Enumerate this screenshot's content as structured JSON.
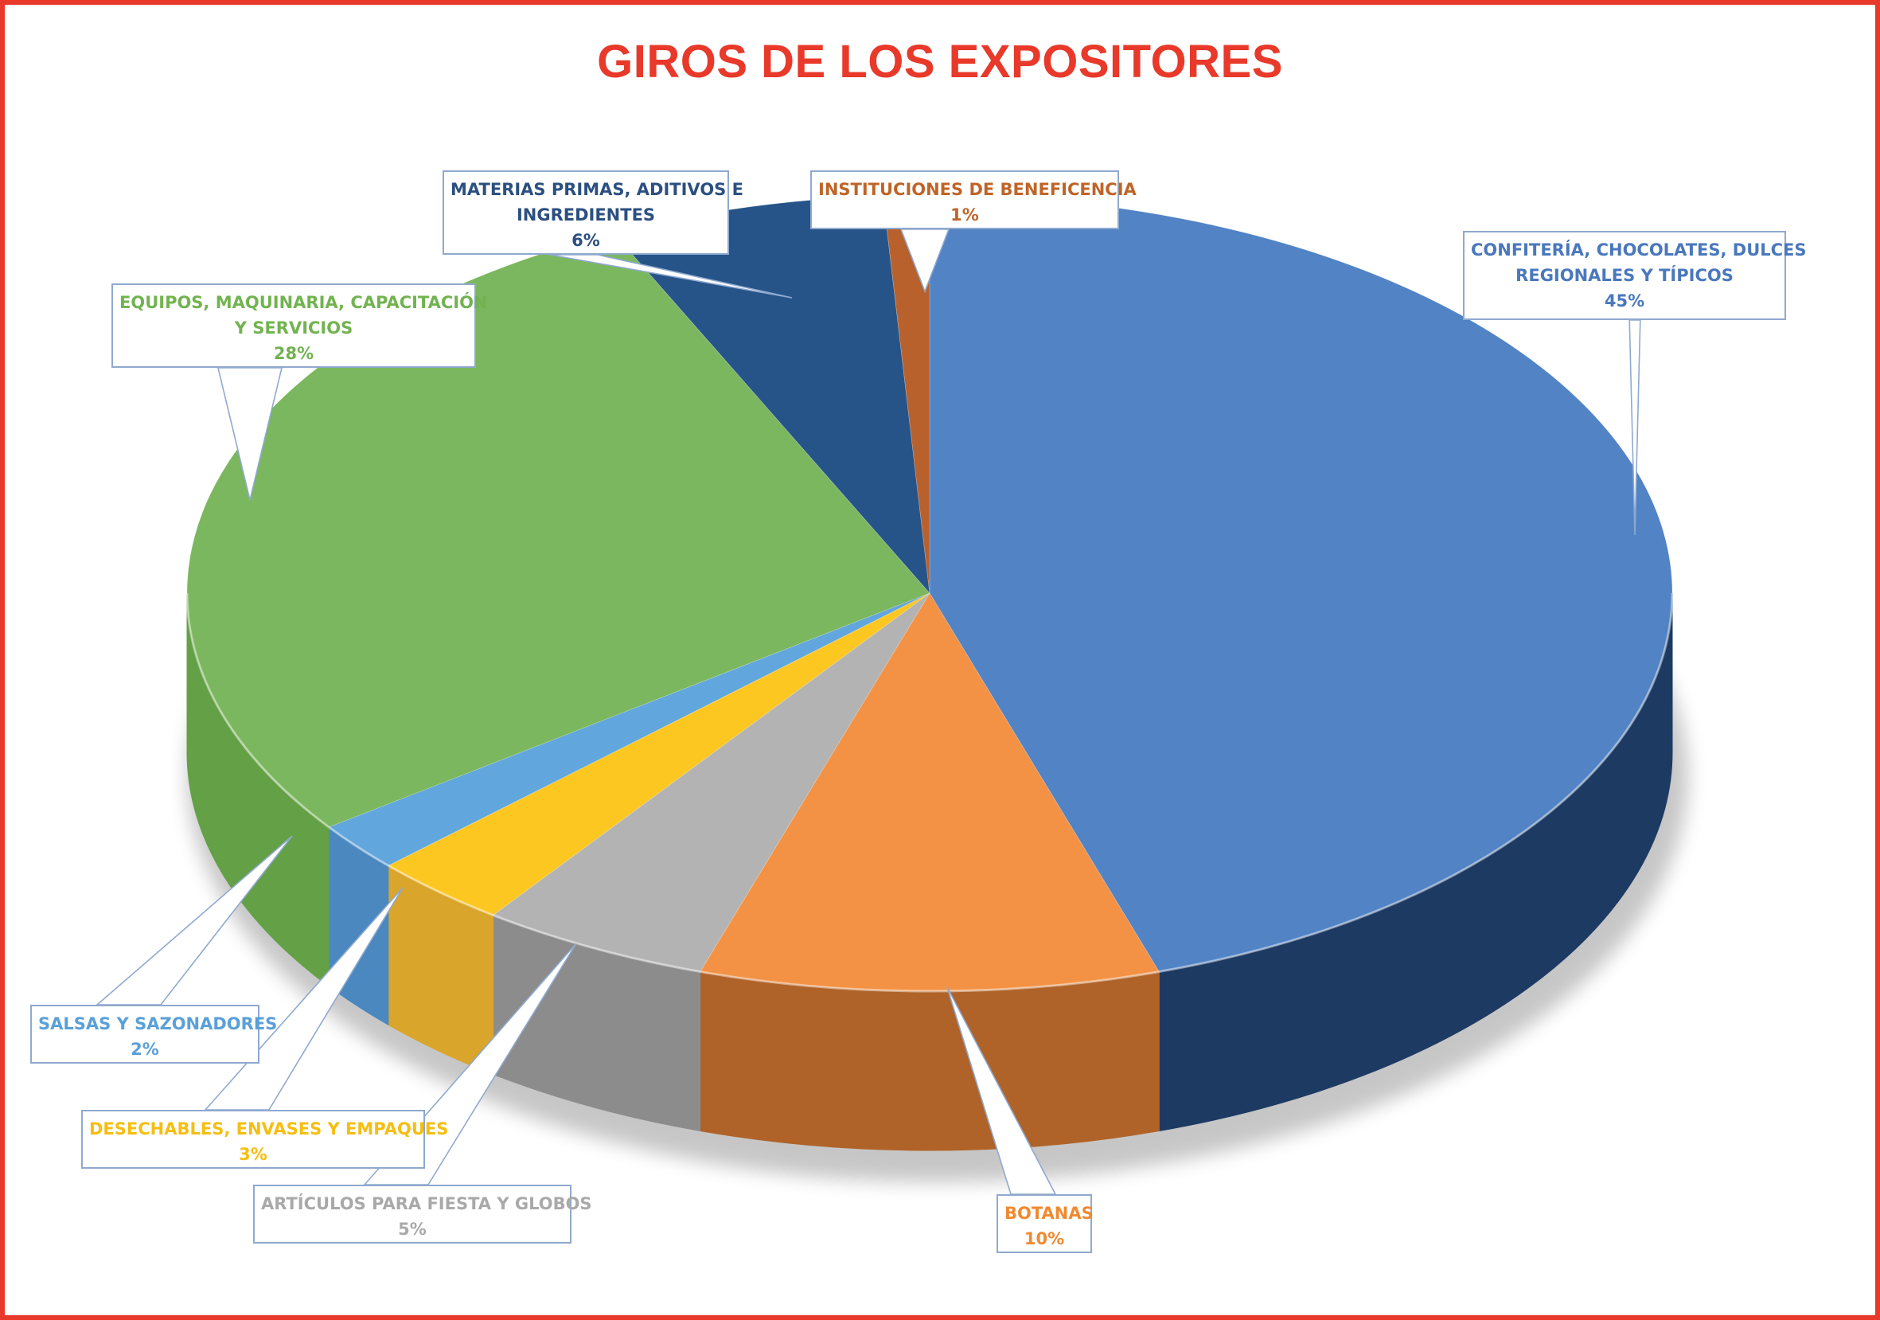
{
  "chart_data": {
    "type": "pie",
    "title": "GIROS DE LOS EXPOSITORES",
    "style": "3d-exploded-none",
    "start_angle_deg": 90,
    "direction": "clockwise",
    "slices": [
      {
        "name": "CONFITERÍA, CHOCOLATES, DULCES REGIONALES Y TÍPICOS",
        "name_lines": [
          "CONFITERÍA, CHOCOLATES, DULCES",
          "REGIONALES Y TÍPICOS"
        ],
        "label": "45%",
        "value": 45,
        "color": "#5183c5",
        "side_color": "#1d3a63",
        "text_color": "#4a78bc"
      },
      {
        "name": "BOTANAS",
        "name_lines": [
          "BOTANAS"
        ],
        "label": "10%",
        "value": 10,
        "color": "#f39244",
        "side_color": "#b06328",
        "text_color": "#f08a30"
      },
      {
        "name": "ARTÍCULOS PARA FIESTA Y GLOBOS",
        "name_lines": [
          "ARTÍCULOS PARA FIESTA Y GLOBOS"
        ],
        "label": "5%",
        "value": 5,
        "color": "#b3b3b3",
        "side_color": "#8c8c8c",
        "text_color": "#a9a9a9"
      },
      {
        "name": "DESECHABLES, ENVASES Y EMPAQUES",
        "name_lines": [
          "DESECHABLES, ENVASES Y EMPAQUES"
        ],
        "label": "3%",
        "value": 3,
        "color": "#fdc722",
        "side_color": "#d9a52a",
        "text_color": "#f5be10"
      },
      {
        "name": "SALSAS Y SAZONADORES",
        "name_lines": [
          "SALSAS Y SAZONADORES"
        ],
        "label": "2%",
        "value": 2,
        "color": "#61a6dc",
        "side_color": "#4a88bf",
        "text_color": "#5aa0d8"
      },
      {
        "name": "EQUIPOS, MAQUINARIA, CAPACITACIÓN Y SERVICIOS",
        "name_lines": [
          "EQUIPOS, MAQUINARIA, CAPACITACIÓN",
          "Y SERVICIOS"
        ],
        "label": "28%",
        "value": 28,
        "color": "#7bb75e",
        "side_color": "#63a046",
        "text_color": "#72b350"
      },
      {
        "name": "MATERIAS PRIMAS, ADITIVOS E INGREDIENTES",
        "name_lines": [
          "MATERIAS PRIMAS, ADITIVOS E",
          "INGREDIENTES"
        ],
        "label": "6%",
        "value": 6,
        "color": "#265489",
        "side_color": "#1a3b62",
        "text_color": "#2b4f80"
      },
      {
        "name": "INSTITUCIONES DE BENEFICENCIA",
        "name_lines": [
          "INSTITUCIONES DE BENEFICENCIA"
        ],
        "label": "1%",
        "value": 1,
        "color": "#b8612c",
        "side_color": "#8c451c",
        "text_color": "#bf6428"
      }
    ],
    "legend": "none",
    "data_labels": "callout-boxes"
  },
  "colors": {
    "frame": "#e8392a",
    "title": "#e8392a",
    "callout_border": "#8fa9cf"
  }
}
